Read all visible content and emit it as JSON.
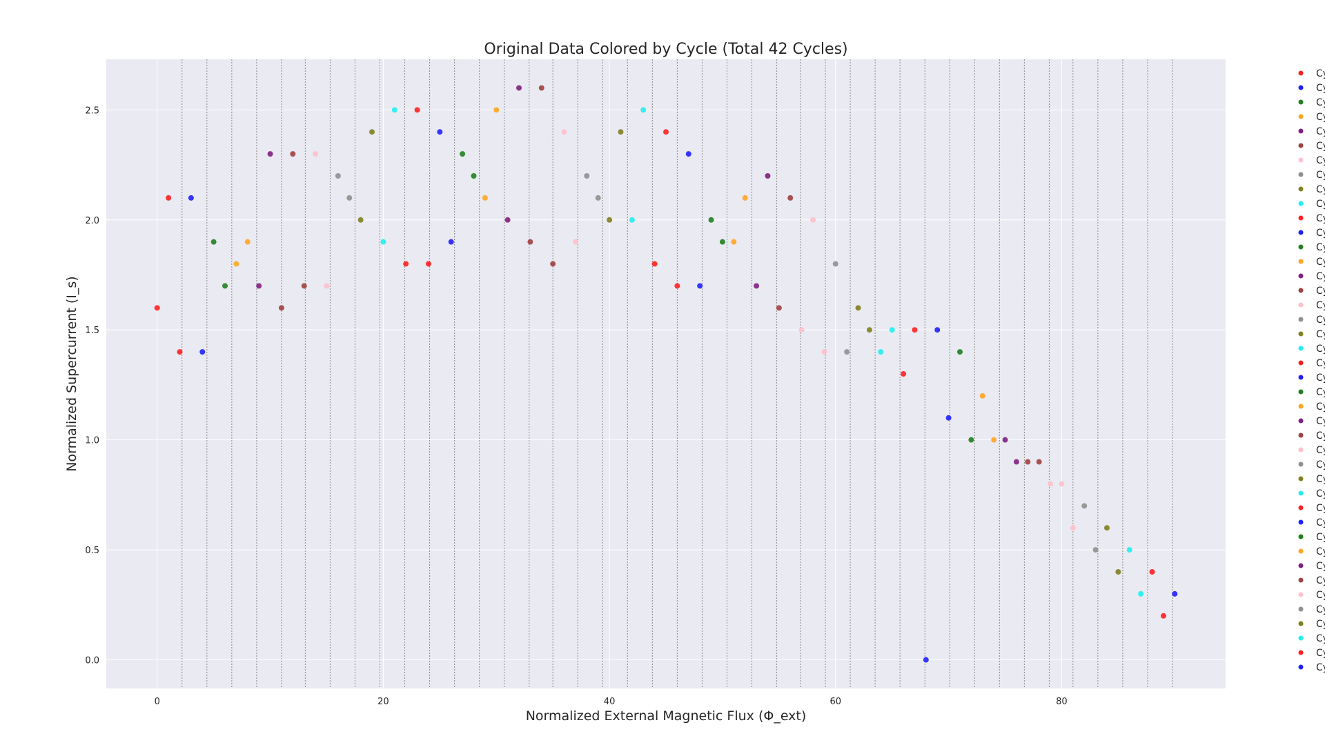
{
  "chart_data": {
    "type": "scatter",
    "title": "Original Data Colored by Cycle (Total 42 Cycles)",
    "xlabel": "Normalized External Magnetic Flux (Φ_ext)",
    "ylabel": "Normalized Supercurrent (I_s)",
    "xlim": [
      -4.5,
      94.5
    ],
    "ylim": [
      -0.13,
      2.73
    ],
    "x_ticks": [
      0,
      20,
      40,
      60,
      80
    ],
    "y_ticks": [
      0.0,
      0.5,
      1.0,
      1.5,
      2.0,
      2.5
    ],
    "x_tick_labels": [
      "0",
      "20",
      "40",
      "60",
      "80"
    ],
    "y_tick_labels": [
      "0.0",
      "0.5",
      "1.0",
      "1.5",
      "2.0",
      "2.5"
    ],
    "grid": true,
    "cycle_boundaries": [
      2.2,
      4.4,
      6.6,
      8.8,
      11.0,
      13.1,
      15.3,
      17.5,
      19.7,
      21.9,
      24.1,
      26.3,
      28.5,
      30.7,
      32.9,
      35.0,
      37.2,
      39.4,
      41.6,
      43.8,
      46.0,
      48.2,
      50.4,
      52.6,
      54.8,
      56.9,
      59.1,
      61.3,
      63.5,
      65.7,
      67.9,
      70.1,
      72.3,
      74.5,
      76.7,
      78.9,
      81.0,
      83.2,
      85.4,
      87.6,
      89.8
    ],
    "palette": [
      "#ff2020",
      "#2020ff",
      "#208020",
      "#ffa520",
      "#802080",
      "#a04040",
      "#ffc0cb",
      "#909090",
      "#808020",
      "#20f0f0"
    ],
    "x": [
      0,
      1,
      2,
      3,
      4,
      5,
      6,
      7,
      8,
      9,
      10,
      11,
      12,
      13,
      14,
      15,
      16,
      17,
      18,
      19,
      20,
      21,
      22,
      23,
      24,
      25,
      26,
      27,
      28,
      29,
      30,
      31,
      32,
      33,
      34,
      35,
      36,
      37,
      38,
      39,
      40,
      41,
      42,
      43,
      44,
      45,
      46,
      47,
      48,
      49,
      50,
      51,
      52,
      53,
      54,
      55,
      56,
      57,
      58,
      59,
      60,
      61,
      62,
      63,
      64,
      65,
      66,
      67,
      68,
      69,
      70,
      71,
      72,
      73,
      74,
      75,
      76,
      77,
      78,
      79,
      80,
      81,
      82,
      83,
      84,
      85,
      86,
      87,
      88,
      89,
      90
    ],
    "y": [
      1.6,
      2.1,
      1.4,
      2.1,
      1.4,
      1.9,
      1.7,
      1.8,
      1.9,
      1.7,
      2.3,
      1.6,
      2.3,
      1.7,
      2.3,
      1.7,
      2.2,
      2.1,
      2.0,
      2.4,
      1.9,
      2.5,
      1.8,
      2.5,
      1.8,
      2.4,
      1.9,
      2.3,
      2.2,
      2.1,
      2.5,
      2.0,
      2.6,
      1.9,
      2.6,
      1.8,
      2.4,
      1.9,
      2.2,
      2.1,
      2.0,
      2.4,
      2.0,
      2.5,
      1.8,
      2.4,
      1.7,
      2.3,
      1.7,
      2.0,
      1.9,
      1.9,
      2.1,
      1.7,
      2.2,
      1.6,
      2.1,
      1.5,
      2.0,
      1.4,
      1.8,
      1.4,
      1.6,
      1.5,
      1.4,
      1.5,
      1.3,
      1.5,
      0.0,
      1.5,
      1.1,
      1.4,
      1.0,
      1.2,
      1.0,
      1.0,
      0.9,
      0.9,
      0.9,
      0.8,
      0.8,
      0.6,
      0.7,
      0.5,
      0.6,
      0.4,
      0.5,
      0.3,
      0.4,
      0.2,
      0.3
    ],
    "point_colors": [
      0,
      0,
      0,
      1,
      1,
      2,
      2,
      3,
      3,
      4,
      4,
      5,
      5,
      5,
      6,
      6,
      7,
      7,
      8,
      8,
      9,
      9,
      0,
      0,
      0,
      1,
      1,
      2,
      2,
      3,
      3,
      4,
      4,
      5,
      5,
      5,
      6,
      6,
      7,
      7,
      8,
      8,
      9,
      9,
      0,
      0,
      0,
      1,
      1,
      2,
      2,
      3,
      3,
      4,
      4,
      5,
      5,
      6,
      6,
      6,
      7,
      7,
      8,
      8,
      9,
      9,
      0,
      0,
      1,
      1,
      1,
      2,
      2,
      3,
      3,
      4,
      4,
      5,
      5,
      6,
      6,
      6,
      7,
      7,
      8,
      8,
      9,
      9,
      0,
      0,
      1
    ],
    "legend": {
      "placement": "right",
      "labels": [
        "Cyc",
        "Cyc",
        "Cyc",
        "Cyc",
        "Cyc",
        "Cyc",
        "Cyc",
        "Cyc",
        "Cyc",
        "Cyc",
        "Cyc",
        "Cyc",
        "Cyc",
        "Cyc",
        "Cyc",
        "Cyc",
        "Cyc",
        "Cyc",
        "Cyc",
        "Cyc",
        "Cyc",
        "Cyc",
        "Cyc",
        "Cyc",
        "Cyc",
        "Cyc",
        "Cyc",
        "Cyc",
        "Cyc",
        "Cyc",
        "Cyc",
        "Cyc",
        "Cyc",
        "Cyc",
        "Cyc",
        "Cyc",
        "Cyc",
        "Cyc",
        "Cyc",
        "Cyc",
        "Cyc",
        "Cyc"
      ],
      "colors": [
        0,
        1,
        2,
        3,
        4,
        5,
        6,
        7,
        8,
        9,
        0,
        1,
        2,
        3,
        4,
        5,
        6,
        7,
        8,
        9,
        0,
        1,
        2,
        3,
        4,
        5,
        6,
        7,
        8,
        9,
        0,
        1,
        2,
        3,
        4,
        5,
        6,
        7,
        8,
        9,
        0,
        1
      ]
    }
  }
}
